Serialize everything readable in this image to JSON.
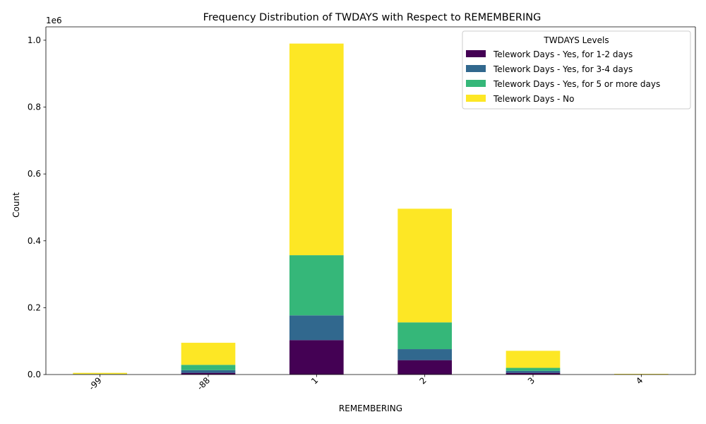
{
  "chart_data": {
    "type": "bar",
    "stacked": true,
    "title": "Frequency Distribution of TWDAYS with Respect to REMEMBERING",
    "xlabel": "REMEMBERING",
    "ylabel": "Count",
    "scale_label": "1e6",
    "categories": [
      "-99",
      "-88",
      "1",
      "2",
      "3",
      "4"
    ],
    "ylim": [
      0,
      1040000
    ],
    "yticks": [
      0,
      200000,
      400000,
      600000,
      800000,
      1000000
    ],
    "ytick_labels": [
      "0.0",
      "0.2",
      "0.4",
      "0.6",
      "0.8",
      "1.0"
    ],
    "legend_title": "TWDAYS Levels",
    "legend_position": "top-right",
    "grid": false,
    "series": [
      {
        "name": "Telework Days - Yes, for 1-2 days",
        "color": "#440154",
        "values": [
          500,
          5000,
          103000,
          43000,
          5000,
          50
        ]
      },
      {
        "name": "Telework Days - Yes, for 3-4 days",
        "color": "#31688e",
        "values": [
          300,
          8000,
          74000,
          33000,
          6000,
          40
        ]
      },
      {
        "name": "Telework Days - Yes, for 5 or more days",
        "color": "#35b779",
        "values": [
          700,
          16000,
          180000,
          80000,
          9000,
          110
        ]
      },
      {
        "name": "Telework Days - No",
        "color": "#fde725",
        "values": [
          3500,
          66000,
          633000,
          340000,
          51000,
          1800
        ]
      }
    ]
  }
}
